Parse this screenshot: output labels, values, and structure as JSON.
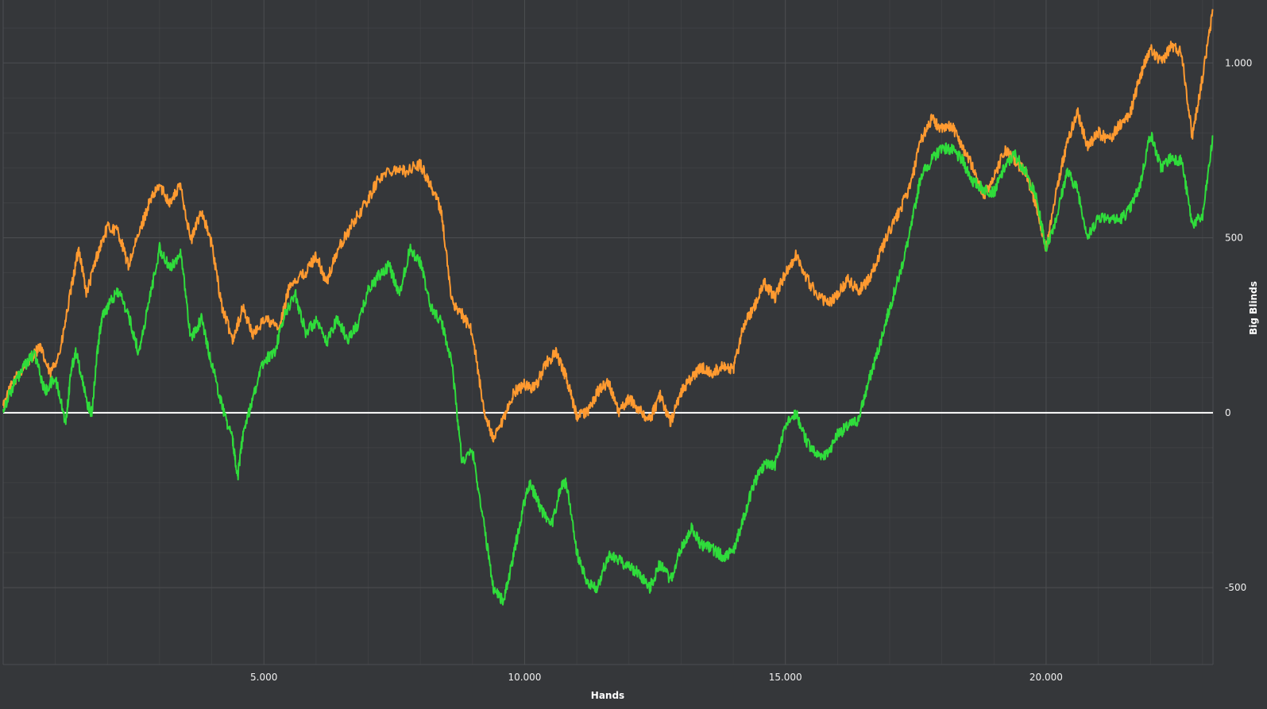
{
  "chart_data": {
    "type": "line",
    "title": "",
    "xlabel": "Hands",
    "ylabel": "Big Blinds",
    "xlim": [
      0,
      23200
    ],
    "ylim": [
      -720,
      1180
    ],
    "x_ticks": [
      5000,
      10000,
      15000,
      20000
    ],
    "x_tick_labels": [
      "5.000",
      "10.000",
      "15.000",
      "20.000"
    ],
    "y_ticks": [
      -500,
      0,
      500,
      1000
    ],
    "y_tick_labels": [
      "-500",
      "0",
      "500",
      "1.000"
    ],
    "grid": true,
    "legend": "none",
    "zero_line": true,
    "background_color": "#35373a",
    "grid_color": "#4c4e51",
    "series": [
      {
        "color": "#ff9a30",
        "points": [
          [
            0,
            20
          ],
          [
            200,
            90
          ],
          [
            500,
            150
          ],
          [
            700,
            190
          ],
          [
            900,
            110
          ],
          [
            1100,
            180
          ],
          [
            1300,
            350
          ],
          [
            1450,
            470
          ],
          [
            1600,
            340
          ],
          [
            1800,
            450
          ],
          [
            2000,
            530
          ],
          [
            2200,
            520
          ],
          [
            2400,
            420
          ],
          [
            2600,
            510
          ],
          [
            2800,
            600
          ],
          [
            3000,
            650
          ],
          [
            3200,
            600
          ],
          [
            3400,
            650
          ],
          [
            3600,
            490
          ],
          [
            3800,
            580
          ],
          [
            4000,
            480
          ],
          [
            4200,
            300
          ],
          [
            4400,
            210
          ],
          [
            4600,
            300
          ],
          [
            4800,
            220
          ],
          [
            5000,
            270
          ],
          [
            5300,
            240
          ],
          [
            5500,
            370
          ],
          [
            5800,
            400
          ],
          [
            6000,
            450
          ],
          [
            6200,
            370
          ],
          [
            6400,
            460
          ],
          [
            6700,
            540
          ],
          [
            7000,
            610
          ],
          [
            7200,
            670
          ],
          [
            7500,
            700
          ],
          [
            7700,
            690
          ],
          [
            8000,
            710
          ],
          [
            8200,
            650
          ],
          [
            8400,
            580
          ],
          [
            8600,
            320
          ],
          [
            8800,
            280
          ],
          [
            9000,
            230
          ],
          [
            9200,
            20
          ],
          [
            9400,
            -80
          ],
          [
            9600,
            -20
          ],
          [
            9800,
            60
          ],
          [
            10000,
            80
          ],
          [
            10200,
            70
          ],
          [
            10400,
            140
          ],
          [
            10600,
            170
          ],
          [
            10800,
            100
          ],
          [
            11000,
            -10
          ],
          [
            11200,
            0
          ],
          [
            11400,
            60
          ],
          [
            11600,
            90
          ],
          [
            11800,
            0
          ],
          [
            12000,
            40
          ],
          [
            12200,
            10
          ],
          [
            12400,
            -20
          ],
          [
            12600,
            50
          ],
          [
            12800,
            -30
          ],
          [
            13000,
            60
          ],
          [
            13200,
            100
          ],
          [
            13400,
            130
          ],
          [
            13600,
            110
          ],
          [
            13800,
            140
          ],
          [
            14000,
            120
          ],
          [
            14200,
            250
          ],
          [
            14400,
            300
          ],
          [
            14600,
            370
          ],
          [
            14800,
            330
          ],
          [
            15000,
            400
          ],
          [
            15200,
            450
          ],
          [
            15500,
            360
          ],
          [
            15800,
            310
          ],
          [
            16000,
            340
          ],
          [
            16200,
            380
          ],
          [
            16400,
            350
          ],
          [
            16600,
            380
          ],
          [
            16800,
            450
          ],
          [
            17000,
            520
          ],
          [
            17200,
            580
          ],
          [
            17400,
            650
          ],
          [
            17600,
            780
          ],
          [
            17800,
            840
          ],
          [
            18000,
            810
          ],
          [
            18200,
            820
          ],
          [
            18400,
            760
          ],
          [
            18600,
            700
          ],
          [
            18800,
            620
          ],
          [
            19000,
            670
          ],
          [
            19200,
            750
          ],
          [
            19400,
            720
          ],
          [
            19600,
            690
          ],
          [
            19800,
            600
          ],
          [
            20000,
            470
          ],
          [
            20200,
            640
          ],
          [
            20400,
            770
          ],
          [
            20600,
            860
          ],
          [
            20800,
            760
          ],
          [
            21000,
            800
          ],
          [
            21200,
            780
          ],
          [
            21400,
            820
          ],
          [
            21600,
            850
          ],
          [
            21800,
            960
          ],
          [
            22000,
            1040
          ],
          [
            22200,
            1000
          ],
          [
            22400,
            1050
          ],
          [
            22600,
            1030
          ],
          [
            22800,
            790
          ],
          [
            23000,
            960
          ],
          [
            23200,
            1150
          ]
        ]
      },
      {
        "color": "#2fdc3b",
        "points": [
          [
            0,
            10
          ],
          [
            200,
            80
          ],
          [
            400,
            130
          ],
          [
            600,
            170
          ],
          [
            800,
            60
          ],
          [
            1000,
            100
          ],
          [
            1200,
            -30
          ],
          [
            1300,
            120
          ],
          [
            1400,
            180
          ],
          [
            1600,
            30
          ],
          [
            1700,
            0
          ],
          [
            1800,
            170
          ],
          [
            1900,
            280
          ],
          [
            2000,
            300
          ],
          [
            2200,
            350
          ],
          [
            2400,
            280
          ],
          [
            2600,
            170
          ],
          [
            2800,
            320
          ],
          [
            3000,
            470
          ],
          [
            3200,
            410
          ],
          [
            3400,
            460
          ],
          [
            3600,
            210
          ],
          [
            3800,
            270
          ],
          [
            4000,
            140
          ],
          [
            4200,
            20
          ],
          [
            4400,
            -80
          ],
          [
            4500,
            -180
          ],
          [
            4600,
            -60
          ],
          [
            4800,
            50
          ],
          [
            5000,
            150
          ],
          [
            5200,
            170
          ],
          [
            5400,
            280
          ],
          [
            5600,
            340
          ],
          [
            5800,
            230
          ],
          [
            6000,
            260
          ],
          [
            6200,
            200
          ],
          [
            6400,
            270
          ],
          [
            6600,
            210
          ],
          [
            6800,
            250
          ],
          [
            7000,
            350
          ],
          [
            7200,
            390
          ],
          [
            7400,
            420
          ],
          [
            7600,
            340
          ],
          [
            7800,
            470
          ],
          [
            8000,
            430
          ],
          [
            8200,
            300
          ],
          [
            8400,
            260
          ],
          [
            8600,
            150
          ],
          [
            8800,
            -140
          ],
          [
            9000,
            -110
          ],
          [
            9200,
            -300
          ],
          [
            9400,
            -500
          ],
          [
            9600,
            -540
          ],
          [
            9800,
            -400
          ],
          [
            10000,
            -250
          ],
          [
            10100,
            -200
          ],
          [
            10300,
            -270
          ],
          [
            10500,
            -330
          ],
          [
            10700,
            -210
          ],
          [
            10800,
            -200
          ],
          [
            11000,
            -400
          ],
          [
            11200,
            -490
          ],
          [
            11400,
            -500
          ],
          [
            11600,
            -410
          ],
          [
            11800,
            -420
          ],
          [
            12000,
            -440
          ],
          [
            12200,
            -460
          ],
          [
            12400,
            -500
          ],
          [
            12600,
            -430
          ],
          [
            12800,
            -480
          ],
          [
            13000,
            -390
          ],
          [
            13200,
            -330
          ],
          [
            13400,
            -380
          ],
          [
            13600,
            -390
          ],
          [
            13800,
            -410
          ],
          [
            14000,
            -400
          ],
          [
            14200,
            -300
          ],
          [
            14400,
            -200
          ],
          [
            14600,
            -150
          ],
          [
            14800,
            -150
          ],
          [
            15000,
            -40
          ],
          [
            15200,
            0
          ],
          [
            15400,
            -80
          ],
          [
            15600,
            -120
          ],
          [
            15800,
            -120
          ],
          [
            16000,
            -60
          ],
          [
            16200,
            -40
          ],
          [
            16400,
            -20
          ],
          [
            16600,
            90
          ],
          [
            16800,
            190
          ],
          [
            17000,
            300
          ],
          [
            17200,
            400
          ],
          [
            17400,
            520
          ],
          [
            17600,
            680
          ],
          [
            17800,
            720
          ],
          [
            18000,
            760
          ],
          [
            18200,
            750
          ],
          [
            18400,
            720
          ],
          [
            18600,
            660
          ],
          [
            18800,
            640
          ],
          [
            19000,
            630
          ],
          [
            19200,
            700
          ],
          [
            19400,
            740
          ],
          [
            19600,
            690
          ],
          [
            19800,
            620
          ],
          [
            20000,
            470
          ],
          [
            20200,
            560
          ],
          [
            20400,
            690
          ],
          [
            20600,
            640
          ],
          [
            20800,
            500
          ],
          [
            21000,
            560
          ],
          [
            21200,
            560
          ],
          [
            21400,
            550
          ],
          [
            21600,
            580
          ],
          [
            21800,
            650
          ],
          [
            22000,
            800
          ],
          [
            22200,
            700
          ],
          [
            22400,
            730
          ],
          [
            22600,
            720
          ],
          [
            22800,
            540
          ],
          [
            23000,
            560
          ],
          [
            23200,
            790
          ]
        ]
      }
    ]
  }
}
